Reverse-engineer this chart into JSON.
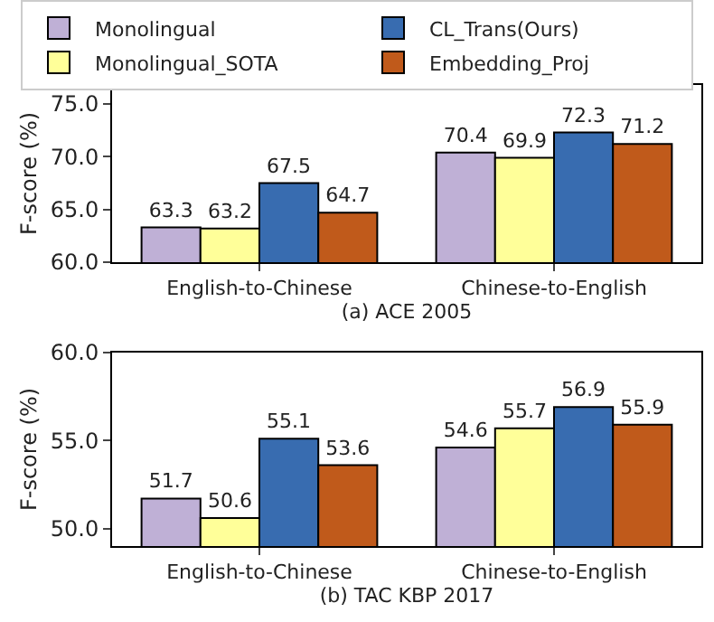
{
  "chart_data": [
    {
      "type": "bar",
      "xlabel": "(a) ACE 2005",
      "ylabel": "F-score (%)",
      "categories": [
        "English-to-Chinese",
        "Chinese-to-English"
      ],
      "series": [
        {
          "name": "Monolingual",
          "color": "#bfb0d6",
          "values": [
            63.3,
            70.4
          ]
        },
        {
          "name": "Monolingual_SOTA",
          "color": "#ffff99",
          "values": [
            63.2,
            69.9
          ]
        },
        {
          "name": "CL_Trans(Ours)",
          "color": "#386cb0",
          "values": [
            67.5,
            72.3
          ]
        },
        {
          "name": "Embedding_Proj",
          "color": "#c05a1b",
          "values": [
            64.7,
            71.2
          ]
        }
      ],
      "ylim": [
        60,
        76.8
      ],
      "yticks": [
        {
          "value": 60,
          "label": "60.0"
        },
        {
          "value": 65,
          "label": "65.0"
        },
        {
          "value": 70,
          "label": "70.0"
        },
        {
          "value": 75,
          "label": "75.0"
        }
      ],
      "data_labels": true,
      "legend": "top"
    },
    {
      "type": "bar",
      "xlabel": "(b) TAC KBP 2017",
      "ylabel": "F-score (%)",
      "categories": [
        "English-to-Chinese",
        "Chinese-to-English"
      ],
      "series": [
        {
          "color": "#bfb0d6",
          "values": [
            51.7,
            54.6
          ]
        },
        {
          "color": "#ffff99",
          "values": [
            50.6,
            55.7
          ]
        },
        {
          "color": "#386cb0",
          "values": [
            55.1,
            56.9
          ]
        },
        {
          "color": "#c05a1b",
          "values": [
            53.6,
            55.9
          ]
        }
      ],
      "ylim": [
        49,
        60
      ],
      "yticks": [
        {
          "value": 50,
          "label": "50.0"
        },
        {
          "value": 55,
          "label": "55.0"
        },
        {
          "value": 60,
          "label": "60.0"
        }
      ],
      "data_labels": true
    }
  ]
}
